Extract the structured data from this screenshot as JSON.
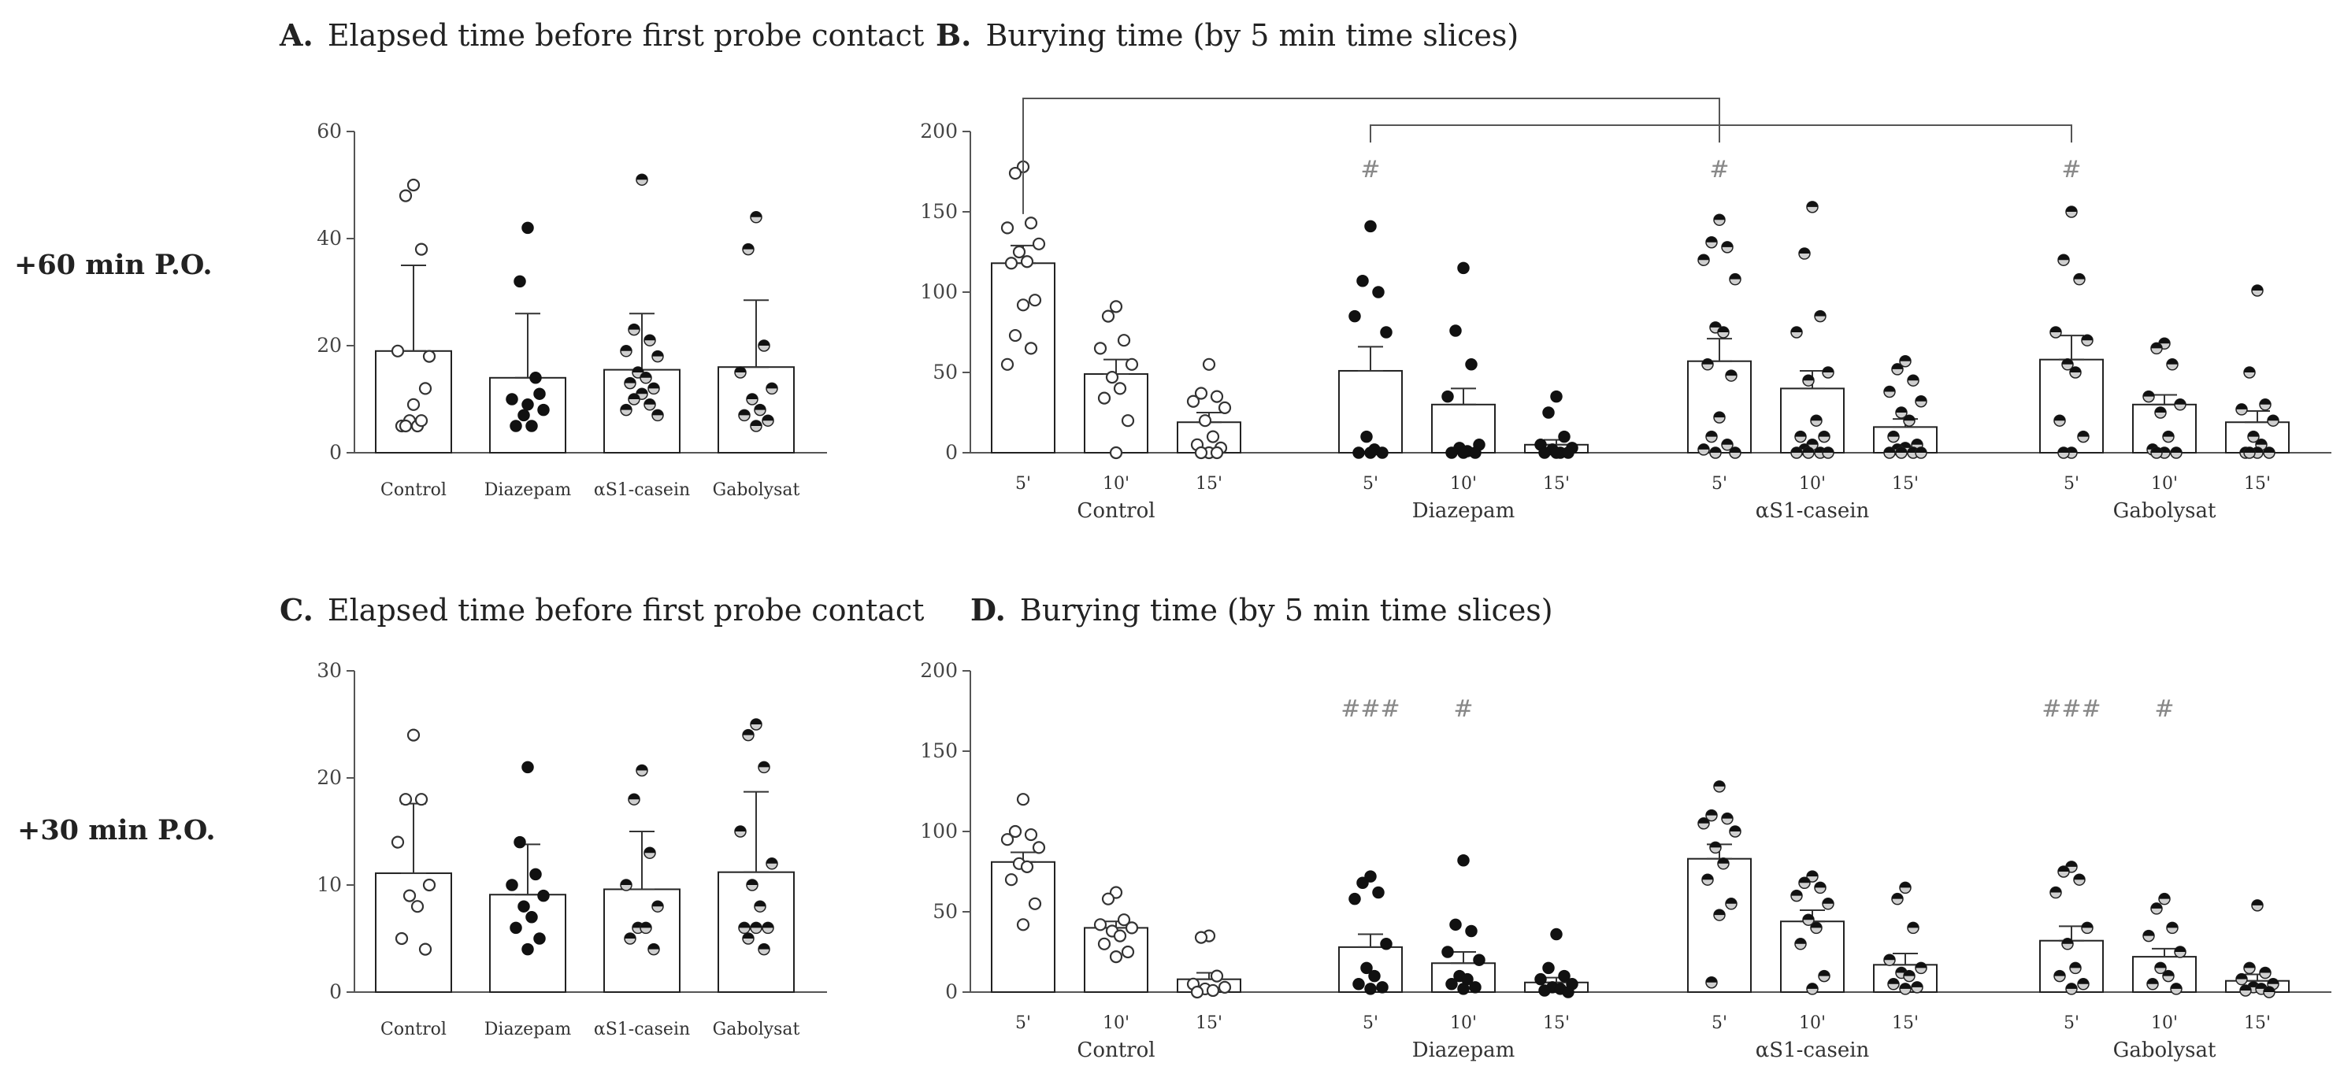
{
  "rows": [
    {
      "label": "+60 min P.O."
    },
    {
      "label": "+30 min P.O."
    }
  ],
  "colors": {
    "bar_stroke": "#222222",
    "bar_fill": "#ffffff",
    "open_point": "#ffffff",
    "filled_point": "#111111",
    "half_point_light": "#cfcfcf",
    "sig_mark": "#888888"
  },
  "chart_data": [
    {
      "id": "A",
      "type": "bar",
      "letter": "A.",
      "title": "Elapsed time before first probe contact",
      "categories": [
        "Control",
        "Diazepam",
        "αS1-casein",
        "Gabolysat"
      ],
      "point_styles": [
        "open",
        "filled",
        "half",
        "half"
      ],
      "ylim": [
        0,
        60
      ],
      "yticks": [
        0,
        20,
        40,
        60
      ],
      "means": [
        19,
        14,
        15.5,
        16
      ],
      "sem": [
        16,
        12,
        10.5,
        12.5
      ],
      "points": [
        [
          50,
          48,
          38,
          19,
          18,
          6,
          5,
          5,
          12,
          9,
          5,
          6
        ],
        [
          42,
          32,
          14,
          10,
          8,
          7,
          5,
          5,
          11,
          9
        ],
        [
          51,
          23,
          21,
          19,
          18,
          15,
          14,
          13,
          12,
          11,
          10,
          9,
          8,
          7
        ],
        [
          44,
          38,
          20,
          15,
          12,
          10,
          8,
          7,
          6,
          5
        ]
      ]
    },
    {
      "id": "B",
      "type": "bar",
      "letter": "B.",
      "title": "Burying time (by 5 min time slices)",
      "groups": [
        "Control",
        "Diazepam",
        "αS1-casein",
        "Gabolysat"
      ],
      "slices": [
        "5'",
        "10'",
        "15'"
      ],
      "point_styles": [
        "open",
        "filled",
        "half",
        "half"
      ],
      "ylim": [
        0,
        200
      ],
      "yticks": [
        0,
        50,
        100,
        150,
        200
      ],
      "means": [
        [
          118,
          49,
          19
        ],
        [
          51,
          30,
          5
        ],
        [
          57,
          40,
          16
        ],
        [
          58,
          30,
          19
        ]
      ],
      "sem": [
        [
          11,
          9,
          6
        ],
        [
          15,
          10,
          3
        ],
        [
          14,
          11,
          5
        ],
        [
          15,
          6,
          7
        ]
      ],
      "points": [
        [
          [
            178,
            174,
            143,
            140,
            130,
            125,
            119,
            118,
            95,
            92,
            73,
            65,
            55
          ],
          [
            91,
            85,
            70,
            65,
            55,
            47,
            40,
            34,
            20,
            0
          ],
          [
            55,
            37,
            35,
            32,
            28,
            20,
            10,
            5,
            3,
            0,
            0,
            0
          ]
        ],
        [
          [
            141,
            107,
            100,
            85,
            75,
            10,
            2,
            0,
            0,
            0
          ],
          [
            115,
            76,
            55,
            35,
            5,
            3,
            1,
            0,
            0,
            0
          ],
          [
            35,
            25,
            10,
            5,
            3,
            2,
            0,
            0,
            0,
            0
          ]
        ],
        [
          [
            145,
            131,
            128,
            120,
            108,
            78,
            75,
            55,
            48,
            22,
            10,
            5,
            2,
            0,
            0
          ],
          [
            153,
            124,
            85,
            75,
            50,
            45,
            20,
            10,
            10,
            5,
            2,
            0,
            0,
            0,
            0
          ],
          [
            57,
            52,
            45,
            38,
            32,
            25,
            20,
            10,
            5,
            3,
            2,
            0,
            0,
            0,
            0
          ]
        ],
        [
          [
            150,
            120,
            108,
            75,
            70,
            55,
            50,
            20,
            10,
            0,
            0
          ],
          [
            68,
            65,
            55,
            35,
            30,
            25,
            10,
            2,
            0,
            0,
            0
          ],
          [
            101,
            50,
            30,
            27,
            20,
            10,
            5,
            0,
            0,
            0,
            0
          ]
        ]
      ],
      "brackets": [
        {
          "from": "Control 5'",
          "to": "αS1-casein 5'"
        },
        {
          "from": "Diazepam 5'",
          "to": "Gabolysat 5'"
        }
      ],
      "annotations": [
        {
          "group": 1,
          "slice": 0,
          "text": "#"
        },
        {
          "group": 2,
          "slice": 0,
          "text": "#"
        },
        {
          "group": 3,
          "slice": 0,
          "text": "#"
        }
      ]
    },
    {
      "id": "C",
      "type": "bar",
      "letter": "C.",
      "title": "Elapsed time before first probe contact",
      "categories": [
        "Control",
        "Diazepam",
        "αS1-casein",
        "Gabolysat"
      ],
      "point_styles": [
        "open",
        "filled",
        "half",
        "half"
      ],
      "ylim": [
        0,
        30
      ],
      "yticks": [
        0,
        10,
        20,
        30
      ],
      "means": [
        11.1,
        9.1,
        9.6,
        11.2
      ],
      "sem": [
        6.5,
        4.7,
        5.4,
        7.5
      ],
      "points": [
        [
          24,
          18,
          18,
          14,
          10,
          9,
          8,
          5,
          4
        ],
        [
          21,
          14,
          11,
          10,
          9,
          8,
          7,
          6,
          5,
          4
        ],
        [
          20.7,
          18,
          13,
          10,
          8,
          6,
          6,
          5,
          4
        ],
        [
          25,
          24,
          21,
          15,
          12,
          10,
          8,
          6,
          6,
          6,
          5,
          4
        ]
      ]
    },
    {
      "id": "D",
      "type": "bar",
      "letter": "D.",
      "title": "Burying time (by 5 min time slices)",
      "groups": [
        "Control",
        "Diazepam",
        "αS1-casein",
        "Gabolysat"
      ],
      "slices": [
        "5'",
        "10'",
        "15'"
      ],
      "point_styles": [
        "open",
        "filled",
        "half",
        "half"
      ],
      "ylim": [
        0,
        200
      ],
      "yticks": [
        0,
        50,
        100,
        150,
        200
      ],
      "means": [
        [
          81,
          40,
          8
        ],
        [
          28,
          18,
          6
        ],
        [
          83,
          44,
          17
        ],
        [
          32,
          22,
          7
        ]
      ],
      "sem": [
        [
          6,
          4,
          4
        ],
        [
          8,
          7,
          3
        ],
        [
          9,
          7,
          7
        ],
        [
          9,
          5,
          4
        ]
      ],
      "points": [
        [
          [
            120,
            100,
            98,
            95,
            90,
            80,
            78,
            70,
            55,
            42
          ],
          [
            62,
            58,
            45,
            42,
            40,
            38,
            35,
            30,
            25,
            22
          ],
          [
            35,
            34,
            10,
            5,
            3,
            2,
            1,
            0
          ]
        ],
        [
          [
            72,
            68,
            62,
            58,
            30,
            15,
            10,
            5,
            3,
            2
          ],
          [
            82,
            42,
            38,
            25,
            20,
            10,
            8,
            5,
            3,
            2
          ],
          [
            36,
            15,
            10,
            8,
            5,
            3,
            2,
            1,
            0
          ]
        ],
        [
          [
            128,
            110,
            108,
            105,
            100,
            90,
            80,
            70,
            55,
            48,
            6
          ],
          [
            72,
            68,
            65,
            60,
            55,
            45,
            40,
            30,
            10,
            2
          ],
          [
            65,
            58,
            40,
            20,
            15,
            12,
            10,
            5,
            3,
            2
          ]
        ],
        [
          [
            78,
            75,
            70,
            62,
            40,
            30,
            15,
            10,
            5,
            2
          ],
          [
            58,
            52,
            40,
            35,
            25,
            15,
            10,
            5,
            2
          ],
          [
            54,
            15,
            12,
            8,
            5,
            3,
            2,
            1,
            0
          ]
        ]
      ],
      "annotations": [
        {
          "group": 1,
          "slice": 0,
          "text": "###"
        },
        {
          "group": 1,
          "slice": 1,
          "text": "#"
        },
        {
          "group": 3,
          "slice": 0,
          "text": "###"
        },
        {
          "group": 3,
          "slice": 1,
          "text": "#"
        }
      ]
    }
  ]
}
